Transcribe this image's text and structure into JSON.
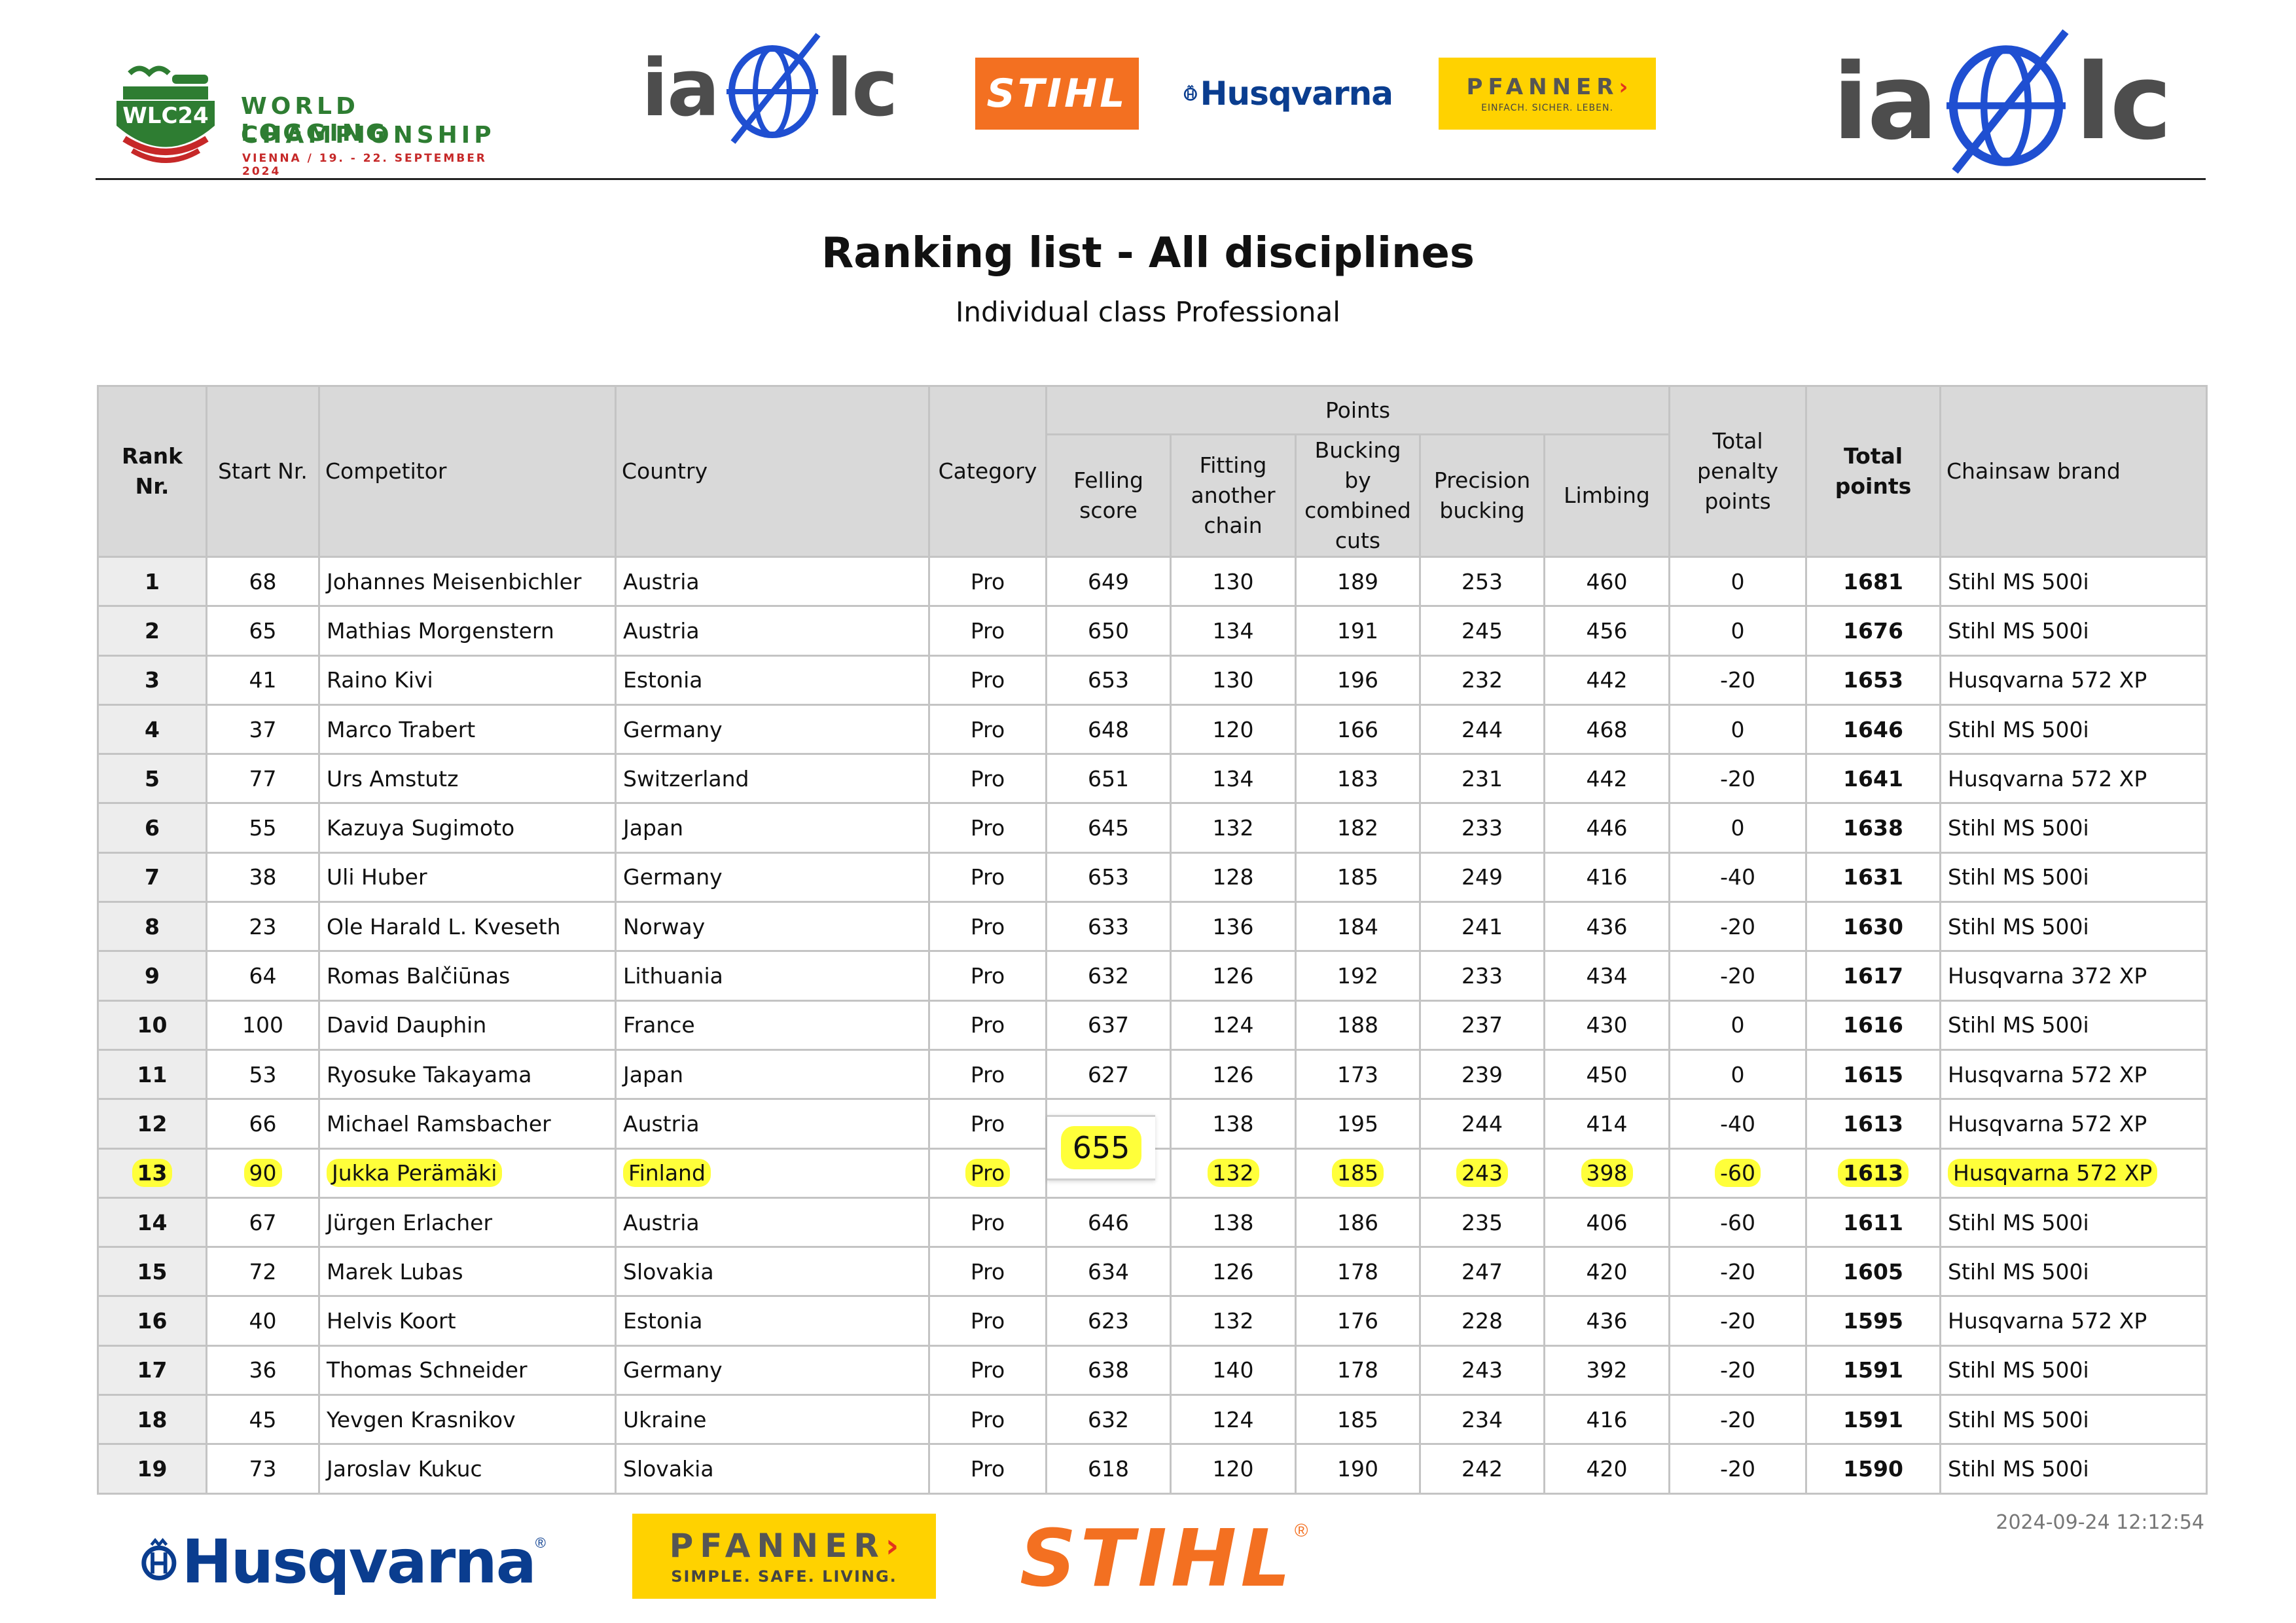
{
  "header": {
    "wlc_logo": {
      "badge": "WLC24",
      "line1": "WORLD LOGGING",
      "line2": "CHAMPIONSHIP",
      "line3": "VIENNA / 19. - 22. SEPTEMBER 2024"
    },
    "iaolc_logo": {
      "left": "ia",
      "right": "lc"
    },
    "stihl_logo": "STIHL",
    "husqvarna_logo": "Husqvarna",
    "pfanner_logo": {
      "name": "PFANNER",
      "slogan": "EINFACH. SICHER. LEBEN."
    }
  },
  "title": "Ranking list - All disciplines",
  "subtitle": "Individual class Professional",
  "table": {
    "headers": {
      "rank": "Rank Nr.",
      "start": "Start Nr.",
      "competitor": "Competitor",
      "country": "Country",
      "category": "Category",
      "points": "Points",
      "felling": "Felling score",
      "fitting": "Fitting another chain",
      "bucking": "Bucking by combined cuts",
      "precision": "Precision bucking",
      "limbing": "Limbing",
      "penalty": "Total penalty points",
      "total": "Total points",
      "brand": "Chainsaw brand"
    },
    "highlighted_row": 13,
    "rows": [
      {
        "rank": "1",
        "start": "68",
        "competitor": "Johannes Meisenbichler",
        "country": "Austria",
        "category": "Pro",
        "felling": "649",
        "fitting": "130",
        "bucking": "189",
        "precision": "253",
        "limbing": "460",
        "penalty": "0",
        "total": "1681",
        "brand": "Stihl MS 500i"
      },
      {
        "rank": "2",
        "start": "65",
        "competitor": "Mathias Morgenstern",
        "country": "Austria",
        "category": "Pro",
        "felling": "650",
        "fitting": "134",
        "bucking": "191",
        "precision": "245",
        "limbing": "456",
        "penalty": "0",
        "total": "1676",
        "brand": "Stihl MS 500i"
      },
      {
        "rank": "3",
        "start": "41",
        "competitor": "Raino Kivi",
        "country": "Estonia",
        "category": "Pro",
        "felling": "653",
        "fitting": "130",
        "bucking": "196",
        "precision": "232",
        "limbing": "442",
        "penalty": "-20",
        "total": "1653",
        "brand": "Husqvarna 572 XP"
      },
      {
        "rank": "4",
        "start": "37",
        "competitor": "Marco Trabert",
        "country": "Germany",
        "category": "Pro",
        "felling": "648",
        "fitting": "120",
        "bucking": "166",
        "precision": "244",
        "limbing": "468",
        "penalty": "0",
        "total": "1646",
        "brand": "Stihl MS 500i"
      },
      {
        "rank": "5",
        "start": "77",
        "competitor": "Urs Amstutz",
        "country": "Switzerland",
        "category": "Pro",
        "felling": "651",
        "fitting": "134",
        "bucking": "183",
        "precision": "231",
        "limbing": "442",
        "penalty": "-20",
        "total": "1641",
        "brand": "Husqvarna 572 XP"
      },
      {
        "rank": "6",
        "start": "55",
        "competitor": "Kazuya Sugimoto",
        "country": "Japan",
        "category": "Pro",
        "felling": "645",
        "fitting": "132",
        "bucking": "182",
        "precision": "233",
        "limbing": "446",
        "penalty": "0",
        "total": "1638",
        "brand": "Stihl MS 500i"
      },
      {
        "rank": "7",
        "start": "38",
        "competitor": "Uli Huber",
        "country": "Germany",
        "category": "Pro",
        "felling": "653",
        "fitting": "128",
        "bucking": "185",
        "precision": "249",
        "limbing": "416",
        "penalty": "-40",
        "total": "1631",
        "brand": "Stihl MS 500i"
      },
      {
        "rank": "8",
        "start": "23",
        "competitor": "Ole Harald L. Kveseth",
        "country": "Norway",
        "category": "Pro",
        "felling": "633",
        "fitting": "136",
        "bucking": "184",
        "precision": "241",
        "limbing": "436",
        "penalty": "-20",
        "total": "1630",
        "brand": "Stihl MS 500i"
      },
      {
        "rank": "9",
        "start": "64",
        "competitor": "Romas Balčiūnas",
        "country": "Lithuania",
        "category": "Pro",
        "felling": "632",
        "fitting": "126",
        "bucking": "192",
        "precision": "233",
        "limbing": "434",
        "penalty": "-20",
        "total": "1617",
        "brand": "Husqvarna 372 XP"
      },
      {
        "rank": "10",
        "start": "100",
        "competitor": "David Dauphin",
        "country": "France",
        "category": "Pro",
        "felling": "637",
        "fitting": "124",
        "bucking": "188",
        "precision": "237",
        "limbing": "430",
        "penalty": "0",
        "total": "1616",
        "brand": "Stihl MS 500i"
      },
      {
        "rank": "11",
        "start": "53",
        "competitor": "Ryosuke Takayama",
        "country": "Japan",
        "category": "Pro",
        "felling": "627",
        "fitting": "126",
        "bucking": "173",
        "precision": "239",
        "limbing": "450",
        "penalty": "0",
        "total": "1615",
        "brand": "Husqvarna 572 XP"
      },
      {
        "rank": "12",
        "start": "66",
        "competitor": "Michael Ramsbacher",
        "country": "Austria",
        "category": "Pro",
        "felling": "",
        "fitting": "138",
        "bucking": "195",
        "precision": "244",
        "limbing": "414",
        "penalty": "-40",
        "total": "1613",
        "brand": "Husqvarna 572 XP"
      },
      {
        "rank": "13",
        "start": "90",
        "competitor": "Jukka Perämäki",
        "country": "Finland",
        "category": "Pro",
        "felling": "",
        "fitting": "132",
        "bucking": "185",
        "precision": "243",
        "limbing": "398",
        "penalty": "-60",
        "total": "1613",
        "brand": "Husqvarna 572 XP"
      },
      {
        "rank": "14",
        "start": "67",
        "competitor": "Jürgen Erlacher",
        "country": "Austria",
        "category": "Pro",
        "felling": "646",
        "fitting": "138",
        "bucking": "186",
        "precision": "235",
        "limbing": "406",
        "penalty": "-60",
        "total": "1611",
        "brand": "Stihl MS 500i"
      },
      {
        "rank": "15",
        "start": "72",
        "competitor": "Marek Lubas",
        "country": "Slovakia",
        "category": "Pro",
        "felling": "634",
        "fitting": "126",
        "bucking": "178",
        "precision": "247",
        "limbing": "420",
        "penalty": "-20",
        "total": "1605",
        "brand": "Stihl MS 500i"
      },
      {
        "rank": "16",
        "start": "40",
        "competitor": "Helvis Koort",
        "country": "Estonia",
        "category": "Pro",
        "felling": "623",
        "fitting": "132",
        "bucking": "176",
        "precision": "228",
        "limbing": "436",
        "penalty": "-20",
        "total": "1595",
        "brand": "Husqvarna 572 XP"
      },
      {
        "rank": "17",
        "start": "36",
        "competitor": "Thomas Schneider",
        "country": "Germany",
        "category": "Pro",
        "felling": "638",
        "fitting": "140",
        "bucking": "178",
        "precision": "243",
        "limbing": "392",
        "penalty": "-20",
        "total": "1591",
        "brand": "Stihl MS 500i"
      },
      {
        "rank": "18",
        "start": "45",
        "competitor": "Yevgen Krasnikov",
        "country": "Ukraine",
        "category": "Pro",
        "felling": "632",
        "fitting": "124",
        "bucking": "185",
        "precision": "234",
        "limbing": "416",
        "penalty": "-20",
        "total": "1591",
        "brand": "Stihl MS 500i"
      },
      {
        "rank": "19",
        "start": "73",
        "competitor": "Jaroslav Kukuc",
        "country": "Slovakia",
        "category": "Pro",
        "felling": "618",
        "fitting": "120",
        "bucking": "190",
        "precision": "242",
        "limbing": "420",
        "penalty": "-20",
        "total": "1590",
        "brand": "Stihl MS 500i"
      }
    ]
  },
  "popup": {
    "value": "655"
  },
  "footer": {
    "husqvarna": "Husqvarna",
    "pfanner": {
      "name": "PFANNER",
      "slogan": "SIMPLE. SAFE. LIVING."
    },
    "stihl": "STIHL",
    "timestamp": "2024-09-24 12:12:54"
  },
  "colors": {
    "highlight": "#ffff3a",
    "stihl_orange": "#f37021",
    "husqvarna_blue": "#0a3d8f",
    "pfanner_yellow": "#ffd200",
    "wlc_green": "#2e7d32",
    "wlc_red": "#c62828",
    "iaolc_blue": "#1f4fd1",
    "header_grey": "#d9d9d9"
  }
}
